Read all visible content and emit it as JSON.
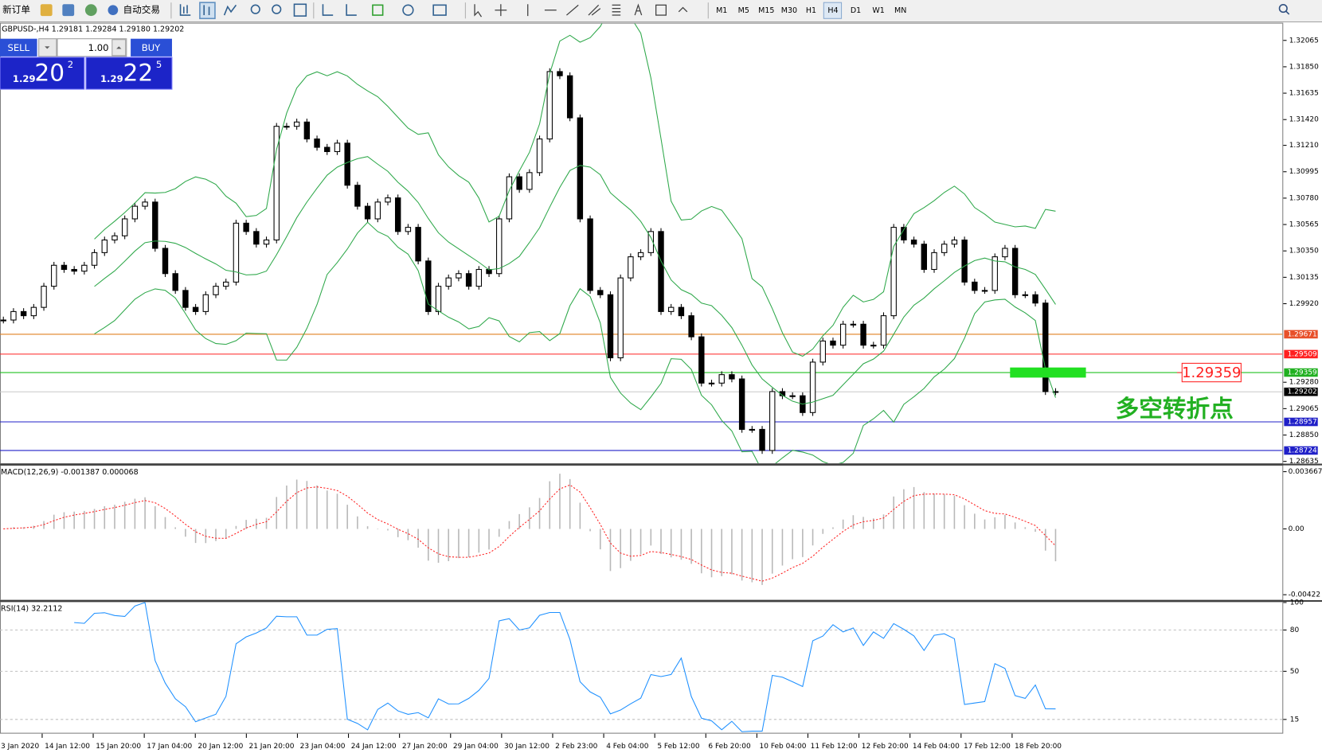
{
  "toolbar": {
    "new_order": "新订单",
    "auto_trading": "自动交易",
    "timeframes": [
      "M1",
      "M5",
      "M15",
      "M30",
      "H1",
      "H4",
      "D1",
      "W1",
      "MN"
    ]
  },
  "trade_panel": {
    "sell": "SELL",
    "buy": "BUY",
    "lots": "1.00",
    "bid": {
      "prefix": "1.29",
      "big": "20",
      "small": "2"
    },
    "ask": {
      "prefix": "1.29",
      "big": "22",
      "small": "5"
    }
  },
  "main_chart": {
    "header": "GBPUSD-,H4  1.29181 1.29284 1.29180 1.29202",
    "ylim": [
      1.2862,
      1.32202
    ],
    "price_ticks": [
      1.32065,
      {
        "value": 1.3185,
        "label": "1.31850"
      },
      1.31635,
      {
        "value": 1.3142,
        "label": "1.31420"
      },
      {
        "value": 1.3121,
        "label": "1.31210"
      },
      1.30995,
      {
        "value": 1.3078,
        "label": "1.30780"
      },
      1.30565,
      {
        "value": 1.3035,
        "label": "1.30350"
      },
      1.30135,
      {
        "value": 1.2992,
        "label": "1.29920"
      },
      {
        "value": 1.2928,
        "label": "1.29280"
      },
      1.29065,
      {
        "value": 1.2885,
        "label": "1.28850"
      },
      1.28635
    ],
    "levels": [
      {
        "value": 1.29671,
        "color": "#e08020",
        "box_color": "#e8502a"
      },
      {
        "value": 1.29509,
        "color": "#ff2020",
        "box_color": "#ff2020"
      },
      {
        "value": 1.29359,
        "color": "#20c020",
        "box_color": "#20b020"
      },
      {
        "value": 1.29202,
        "color": "#c8c8c8",
        "box_color": "#000000"
      },
      {
        "value": 1.28957,
        "color": "#2020c8",
        "box_color": "#2020c8"
      },
      {
        "value": 1.28724,
        "color": "#2020c8",
        "box_color": "#2020c8"
      }
    ],
    "closes": [
      1.29787,
      1.29856,
      1.29822,
      1.2989,
      1.30062,
      1.30233,
      1.30199,
      1.30185,
      1.30233,
      1.30336,
      1.30439,
      1.30473,
      1.30611,
      1.30714,
      1.30748,
      1.30371,
      1.30165,
      1.30028,
      1.2989,
      1.29856,
      1.29993,
      1.30062,
      1.30096,
      1.30576,
      1.30508,
      1.30405,
      1.30439,
      1.31365,
      1.31365,
      1.314,
      1.31262,
      1.31194,
      1.31159,
      1.31228,
      1.30885,
      1.30714,
      1.30611,
      1.30748,
      1.30782,
      1.30508,
      1.30542,
      1.30268,
      1.29856,
      1.30062,
      1.3013,
      1.30165,
      1.30062,
      1.30199,
      1.30165,
      1.30611,
      1.30954,
      1.30851,
      1.30988,
      1.31262,
      1.31811,
      1.31777,
      1.31434,
      1.30611,
      1.30028,
      1.29993,
      1.29479,
      1.3013,
      1.30302,
      1.30336,
      1.30508,
      1.29856,
      1.2989,
      1.29822,
      1.2965,
      1.29273,
      1.29273,
      1.29342,
      1.29307,
      1.28896,
      1.28896,
      1.28724,
      1.29204,
      1.2917,
      1.2917,
      1.29033,
      1.29444,
      1.29616,
      1.29582,
      1.29753,
      1.29753,
      1.29582,
      1.29582,
      1.29822,
      1.30542,
      1.30439,
      1.30405,
      1.30199,
      1.30336,
      1.30405,
      1.30439,
      1.30096,
      1.30028,
      1.30028,
      1.30302,
      1.30371,
      1.29993,
      1.29993,
      1.29925,
      1.29204,
      1.29202
    ],
    "annotation": "多空转折点"
  },
  "macd": {
    "label": "MACD(12,26,9) -0.001387 0.000068",
    "ylim": [
      -0.00454,
      0.004045
    ],
    "ticks": [
      0.003667,
      {
        "value": 0,
        "label": "0.00"
      },
      -0.00422
    ]
  },
  "rsi": {
    "label": "RSI(14) 32.2112",
    "ylim": [
      5.3,
      100.2
    ],
    "ticks": [
      100,
      80,
      50,
      15
    ]
  },
  "time_axis": [
    "3 Jan 2020",
    "14 Jan 12:00",
    "15 Jan 20:00",
    "17 Jan 04:00",
    "20 Jan 12:00",
    "21 Jan 20:00",
    "23 Jan 04:00",
    "24 Jan 12:00",
    "27 Jan 20:00",
    "29 Jan 04:00",
    "30 Jan 12:00",
    "2 Feb 23:00",
    "4 Feb 04:00",
    "5 Feb 12:00",
    "6 Feb 20:00",
    "10 Feb 04:00",
    "11 Feb 12:00",
    "12 Feb 20:00",
    "14 Feb 04:00",
    "17 Feb 12:00",
    "18 Feb 20:00"
  ]
}
